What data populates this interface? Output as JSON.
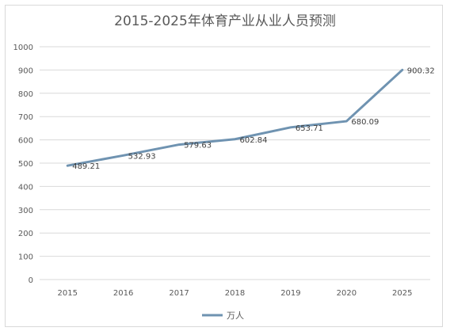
{
  "chart_data": {
    "type": "line",
    "title": "2015-2025年体育产业从业人员预测",
    "categories": [
      "2015",
      "2016",
      "2017",
      "2018",
      "2019",
      "2020",
      "2025"
    ],
    "series": [
      {
        "name": "万人",
        "values": [
          489.21,
          532.93,
          579.63,
          602.84,
          653.71,
          680.09,
          900.32
        ],
        "color": "#6f93b1"
      }
    ],
    "data_labels": [
      "489.21",
      "532.93",
      "579.63",
      "602.84",
      "653.71",
      "680.09",
      "900.32"
    ],
    "ylim": [
      0,
      1000
    ],
    "yticks": [
      0,
      100,
      200,
      300,
      400,
      500,
      600,
      700,
      800,
      900,
      1000
    ],
    "grid": true,
    "legend_position": "bottom",
    "gridline_color": "#d9d9d9"
  }
}
